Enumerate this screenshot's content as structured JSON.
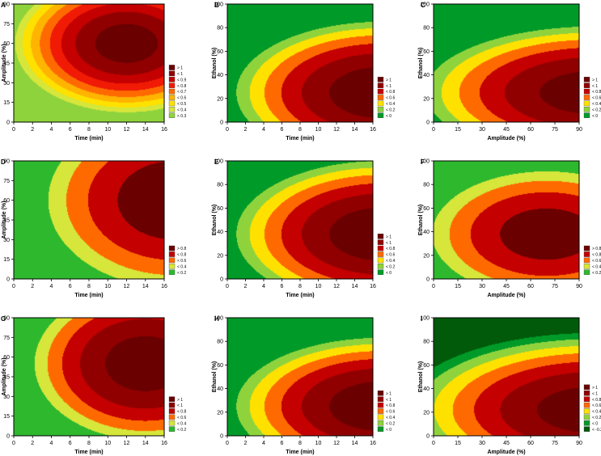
{
  "colors": {
    "c1": "#005a0a",
    "c2": "#009a28",
    "c3": "#2eb82e",
    "c4": "#8fd33c",
    "c5": "#d6e63a",
    "c6": "#ffe100",
    "c7": "#ffb400",
    "c8": "#ff6a00",
    "c9": "#f01a05",
    "c10": "#c40000",
    "c11": "#900000",
    "c12": "#6a0000",
    "axis": "#000000"
  },
  "chart_data": [
    {
      "label": "A",
      "type": "heatmap",
      "x": "time",
      "y": "amp",
      "xlabel": "Time (min)",
      "ylabel": "Amplitude (%)",
      "xticks": [
        "0",
        "2",
        "4",
        "6",
        "8",
        "10",
        "12",
        "14",
        "16"
      ],
      "yticks": [
        "0",
        "15",
        "30",
        "45",
        "60",
        "75",
        "90"
      ],
      "xlim": [
        0,
        16
      ],
      "ylim": [
        0,
        90
      ],
      "legend": [
        "> 1",
        "< 1",
        "< 0.9",
        "< 0.8",
        "< 0.7",
        "< 0.6",
        "< 0.5",
        "< 0.4",
        "< 0.3"
      ],
      "legend_colors": [
        "c12",
        "c11",
        "c10",
        "c9",
        "c8",
        "c7",
        "c6",
        "c5",
        "c4"
      ],
      "peak": [
        12,
        60
      ],
      "scale": [
        14,
        62
      ],
      "max": 1.06
    },
    {
      "label": "B",
      "type": "heatmap",
      "x": "time",
      "y": "eth",
      "xlabel": "Time (min)",
      "ylabel": "Ethanol (%)",
      "xticks": [
        "0",
        "2",
        "4",
        "6",
        "8",
        "10",
        "12",
        "14",
        "16"
      ],
      "yticks": [
        "0",
        "20",
        "40",
        "60",
        "80",
        "100"
      ],
      "xlim": [
        0,
        16
      ],
      "ylim": [
        0,
        100
      ],
      "legend": [
        "> 1",
        "< 1",
        "< 0.8",
        "< 0.6",
        "< 0.4",
        "< 0.2",
        "< 0"
      ],
      "legend_colors": [
        "c12",
        "c11",
        "c10",
        "c8",
        "c6",
        "c4",
        "c2"
      ],
      "peak": [
        17,
        25
      ],
      "scale": [
        16,
        60
      ],
      "max": 1.15
    },
    {
      "label": "C",
      "type": "heatmap",
      "x": "amp",
      "y": "eth",
      "xlabel": "Amplitude (%)",
      "ylabel": "Ethanol (%)",
      "xticks": [
        "0",
        "15",
        "30",
        "45",
        "60",
        "75",
        "90"
      ],
      "yticks": [
        "0",
        "20",
        "40",
        "60",
        "80",
        "100"
      ],
      "xlim": [
        0,
        90
      ],
      "ylim": [
        0,
        100
      ],
      "legend": [
        "> 1",
        "< 1",
        "< 0.8",
        "< 0.6",
        "< 0.4",
        "< 0.2",
        "< 0"
      ],
      "legend_colors": [
        "c12",
        "c11",
        "c10",
        "c8",
        "c6",
        "c4",
        "c2"
      ],
      "peak": [
        100,
        25
      ],
      "scale": [
        105,
        56
      ],
      "max": 1.12
    },
    {
      "label": "D",
      "type": "heatmap",
      "x": "time",
      "y": "amp",
      "xlabel": "Time (min)",
      "ylabel": "Amplitude (%)",
      "xticks": [
        "0",
        "2",
        "4",
        "6",
        "8",
        "10",
        "12",
        "14",
        "16"
      ],
      "yticks": [
        "0",
        "15",
        "30",
        "45",
        "60",
        "75",
        "90"
      ],
      "xlim": [
        0,
        16
      ],
      "ylim": [
        0,
        90
      ],
      "legend": [
        "> 0.8",
        "< 0.8",
        "< 0.6",
        "< 0.4",
        "< 0.2"
      ],
      "legend_colors": [
        "c12",
        "c10",
        "c8",
        "c5",
        "c3"
      ],
      "peak": [
        17,
        60
      ],
      "scale": [
        15,
        75
      ],
      "max": 0.95
    },
    {
      "label": "E",
      "type": "heatmap",
      "x": "time",
      "y": "eth",
      "xlabel": "Time (min)",
      "ylabel": "Ethanol (%)",
      "xticks": [
        "0",
        "2",
        "4",
        "6",
        "8",
        "10",
        "12",
        "14",
        "16"
      ],
      "yticks": [
        "0",
        "20",
        "40",
        "60",
        "80",
        "100"
      ],
      "xlim": [
        0,
        16
      ],
      "ylim": [
        0,
        100
      ],
      "legend": [
        "> 1",
        "< 1",
        "< 0.8",
        "< 0.6",
        "< 0.4",
        "< 0.2",
        "< 0"
      ],
      "legend_colors": [
        "c12",
        "c11",
        "c10",
        "c8",
        "c6",
        "c4",
        "c2"
      ],
      "peak": [
        17,
        38
      ],
      "scale": [
        16,
        62
      ],
      "max": 1.15
    },
    {
      "label": "F",
      "type": "heatmap",
      "x": "amp",
      "y": "eth",
      "xlabel": "Amplitude (%)",
      "ylabel": "Ethanol (%)",
      "xticks": [
        "0",
        "15",
        "30",
        "45",
        "60",
        "75",
        "90"
      ],
      "yticks": [
        "0",
        "20",
        "40",
        "60",
        "80",
        "100"
      ],
      "xlim": [
        0,
        90
      ],
      "ylim": [
        0,
        100
      ],
      "legend": [
        "> 0.8",
        "< 0.8",
        "< 0.6",
        "< 0.4",
        "< 0.2"
      ],
      "legend_colors": [
        "c12",
        "c10",
        "c8",
        "c5",
        "c3"
      ],
      "peak": [
        70,
        38
      ],
      "scale": [
        80,
        60
      ],
      "max": 0.92
    },
    {
      "label": "G",
      "type": "heatmap",
      "x": "time",
      "y": "amp",
      "xlabel": "Time (min)",
      "ylabel": "Amplitude (%)",
      "xticks": [
        "0",
        "2",
        "4",
        "6",
        "8",
        "10",
        "12",
        "14",
        "16"
      ],
      "yticks": [
        "0",
        "15",
        "30",
        "45",
        "60",
        "75",
        "90"
      ],
      "xlim": [
        0,
        16
      ],
      "ylim": [
        0,
        90
      ],
      "legend": [
        "> 1",
        "< 1",
        "< 0.8",
        "< 0.6",
        "< 0.4",
        "< 0.2"
      ],
      "legend_colors": [
        "c12",
        "c11",
        "c10",
        "c8",
        "c5",
        "c3"
      ],
      "peak": [
        14,
        55
      ],
      "scale": [
        13,
        64
      ],
      "max": 1.12
    },
    {
      "label": "H",
      "type": "heatmap",
      "x": "time",
      "y": "eth",
      "xlabel": "Time (min)",
      "ylabel": "Ethanol (%)",
      "xticks": [
        "0",
        "2",
        "4",
        "6",
        "8",
        "10",
        "12",
        "14",
        "16"
      ],
      "yticks": [
        "0",
        "20",
        "40",
        "60",
        "80",
        "100"
      ],
      "xlim": [
        0,
        16
      ],
      "ylim": [
        0,
        100
      ],
      "legend": [
        "> 1",
        "< 1",
        "< 0.8",
        "< 0.6",
        "< 0.4",
        "< 0.2",
        "< 0"
      ],
      "legend_colors": [
        "c12",
        "c11",
        "c10",
        "c8",
        "c6",
        "c4",
        "c2"
      ],
      "peak": [
        17,
        25
      ],
      "scale": [
        16,
        58
      ],
      "max": 1.15
    },
    {
      "label": "I",
      "type": "heatmap",
      "x": "amp",
      "y": "eth",
      "xlabel": "Amplitude (%)",
      "ylabel": "Ethanol (%)",
      "xticks": [
        "0",
        "15",
        "30",
        "45",
        "60",
        "75",
        "90"
      ],
      "yticks": [
        "0",
        "20",
        "40",
        "60",
        "80",
        "100"
      ],
      "xlim": [
        0,
        90
      ],
      "ylim": [
        0,
        100
      ],
      "legend": [
        "> 1",
        "< 1",
        "< 0.8",
        "< 0.6",
        "< 0.4",
        "< 0.2",
        "< 0",
        "< -0.2"
      ],
      "legend_colors": [
        "c12",
        "c11",
        "c10",
        "c8",
        "c6",
        "c4",
        "c2",
        "c1"
      ],
      "peak": [
        100,
        22
      ],
      "scale": [
        110,
        60
      ],
      "max": 1.12
    }
  ]
}
